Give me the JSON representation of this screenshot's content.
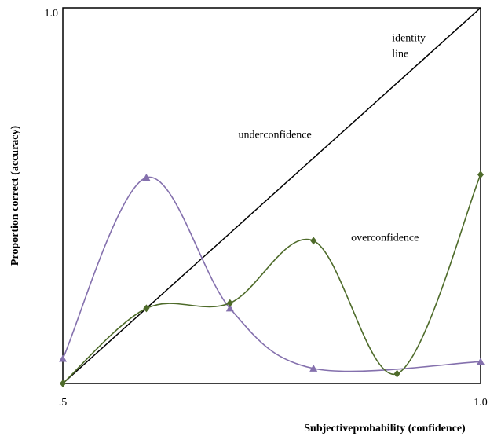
{
  "chart_data": {
    "type": "line",
    "xlabel": "Subjectiveprobability (confidence)",
    "ylabel": "Proportion correct (accuracy)",
    "xlim": [
      0.5,
      1.0
    ],
    "ylim": [
      0.5,
      1.0
    ],
    "xticks": [
      {
        "value": 0.5,
        "label": ".5"
      },
      {
        "value": 1.0,
        "label": "1.0"
      }
    ],
    "yticks": [
      {
        "value": 1.0,
        "label": "1.0"
      }
    ],
    "identity_line": {
      "x": [
        0.5,
        1.0
      ],
      "values": [
        0.5,
        1.0
      ],
      "color": "#000000"
    },
    "series": [
      {
        "color": "#8470ad",
        "marker": "triangle",
        "x": [
          0.5,
          0.6,
          0.7,
          0.8,
          1.0
        ],
        "values": [
          0.533,
          0.774,
          0.6,
          0.52,
          0.529
        ]
      },
      {
        "color": "#4e6b2a",
        "marker": "diamond",
        "x": [
          0.5,
          0.6,
          0.7,
          0.8,
          0.9,
          1.0
        ],
        "values": [
          0.5,
          0.6,
          0.607,
          0.69,
          0.513,
          0.778
        ]
      }
    ],
    "annotations": [
      {
        "text": "identity",
        "x": 0.894,
        "y": 0.959
      },
      {
        "text": "line",
        "x": 0.894,
        "y": 0.938
      },
      {
        "text": "underconfidence",
        "x": 0.71,
        "y": 0.83
      },
      {
        "text": "overconfidence",
        "x": 0.845,
        "y": 0.693
      }
    ]
  }
}
